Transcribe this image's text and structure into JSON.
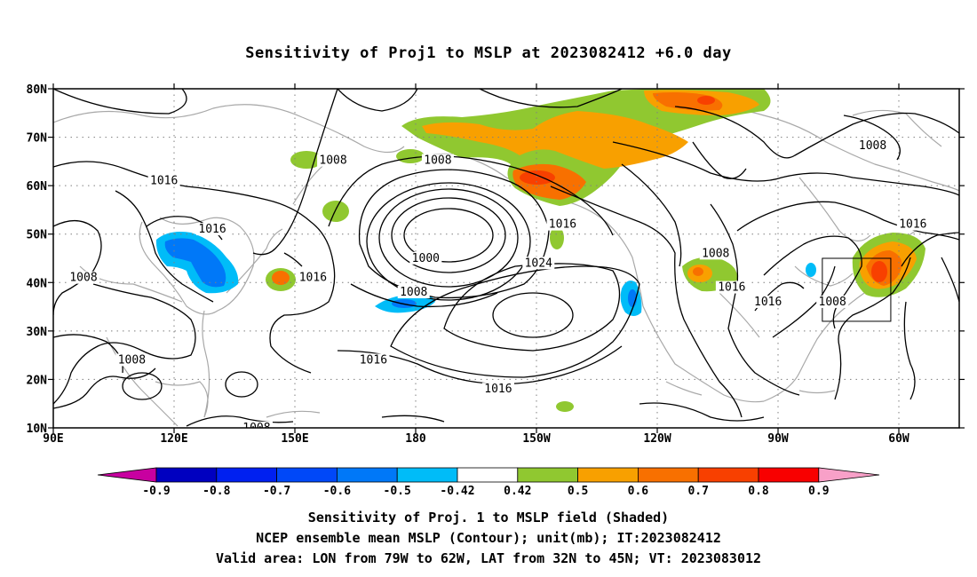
{
  "title": "Sensitivity of Proj1 to MSLP at 2023082412 +6.0 day",
  "map": {
    "lat_labels": [
      "80N",
      "70N",
      "60N",
      "50N",
      "40N",
      "30N",
      "20N",
      "10N"
    ],
    "lon_labels": [
      "90E",
      "120E",
      "150E",
      "180",
      "150W",
      "120W",
      "90W",
      "60W"
    ],
    "contour_labels": [
      {
        "text": "1008",
        "lon": 159.5,
        "lat": 64.5
      },
      {
        "text": "1008",
        "lon": 185.5,
        "lat": 64.5
      },
      {
        "text": "1008",
        "lon": 293.5,
        "lat": 67.5
      },
      {
        "text": "1016",
        "lon": 117.5,
        "lat": 60.3
      },
      {
        "text": "1016",
        "lon": 129.5,
        "lat": 50.3
      },
      {
        "text": "1016",
        "lon": 154.5,
        "lat": 40.3
      },
      {
        "text": "1016",
        "lon": 216.5,
        "lat": 51.3
      },
      {
        "text": "1016",
        "lon": 303.5,
        "lat": 51.3
      },
      {
        "text": "1008",
        "lon": 97.5,
        "lat": 40.3
      },
      {
        "text": "1000",
        "lon": 182.5,
        "lat": 44.3
      },
      {
        "text": "1008",
        "lon": 179.5,
        "lat": 37.3
      },
      {
        "text": "1024",
        "lon": 210.5,
        "lat": 43.3
      },
      {
        "text": "1008",
        "lon": 254.5,
        "lat": 45.3
      },
      {
        "text": "1016",
        "lon": 258.5,
        "lat": 38.3
      },
      {
        "text": "1016",
        "lon": 267.5,
        "lat": 35.3
      },
      {
        "text": "1008",
        "lon": 283.5,
        "lat": 35.3
      },
      {
        "text": "1008",
        "lon": 109.5,
        "lat": 23.3
      },
      {
        "text": "1016",
        "lon": 169.5,
        "lat": 23.3
      },
      {
        "text": "1016",
        "lon": 200.5,
        "lat": 17.3
      },
      {
        "text": "1008",
        "lon": 140.5,
        "lat": 9.3
      }
    ],
    "valid_box": {
      "lon_min": -79,
      "lon_max": -62,
      "lat_min": 32,
      "lat_max": 45
    }
  },
  "colorbar": {
    "tick_labels": [
      "-0.9",
      "-0.8",
      "-0.7",
      "-0.6",
      "-0.5",
      "-0.42",
      "0.42",
      "0.5",
      "0.6",
      "0.7",
      "0.8",
      "0.9"
    ],
    "colors": [
      "#0000c0",
      "#0020f0",
      "#0048f8",
      "#0078f8",
      "#00bcf8",
      "#ffffff",
      "#90c830",
      "#f8a000",
      "#f87000",
      "#f84000",
      "#f80000"
    ],
    "low_extend_color": "#c800a0",
    "high_extend_color": "#f8a0c8"
  },
  "caption": {
    "line1": "Sensitivity of Proj. 1 to MSLP field (Shaded)",
    "line2": "NCEP ensemble mean MSLP (Contour); unit(mb); IT:2023082412",
    "line3": "Valid area: LON from 79W to 62W, LAT from 32N to 45N; VT: 2023083012"
  }
}
